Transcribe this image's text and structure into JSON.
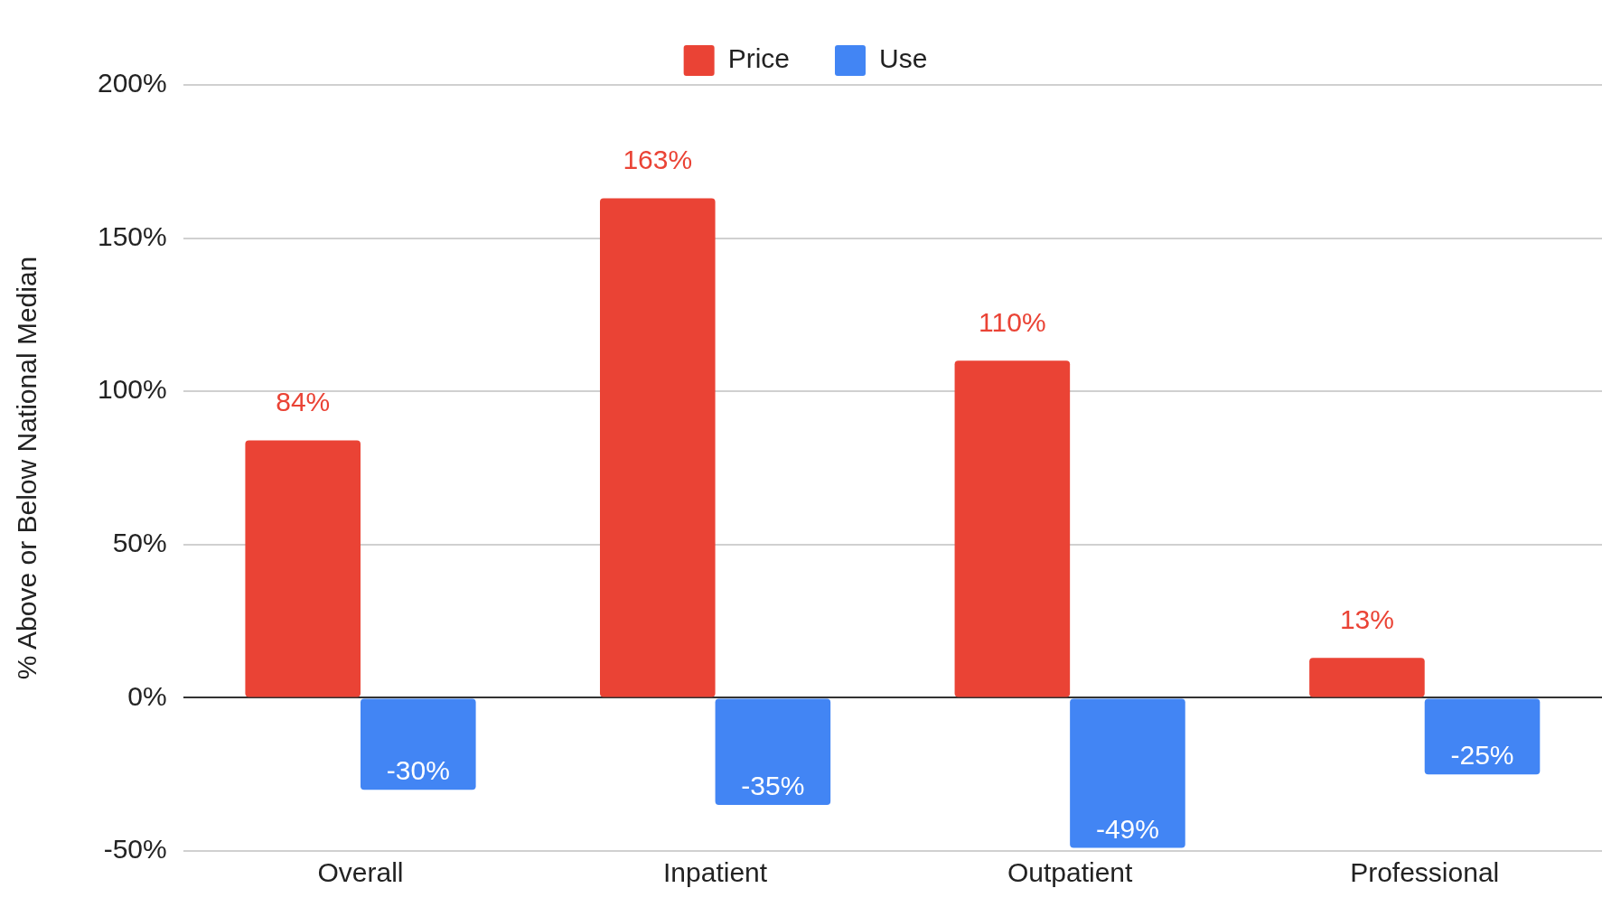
{
  "chart_data": {
    "type": "bar",
    "ylabel": "% Above or Below National Median",
    "categories": [
      "Overall",
      "Inpatient",
      "Outpatient",
      "Professional"
    ],
    "series": [
      {
        "name": "Price",
        "color": "#ea4335",
        "values": [
          84,
          163,
          110,
          13
        ],
        "value_labels": [
          "84%",
          "163%",
          "110%",
          "13%"
        ]
      },
      {
        "name": "Use",
        "color": "#4285f4",
        "values": [
          -30,
          -35,
          -49,
          -25
        ],
        "value_labels": [
          "-30%",
          "-35%",
          "-49%",
          "-25%"
        ]
      }
    ],
    "ylim": [
      -50,
      200
    ],
    "yticks": [
      {
        "value": -50,
        "label": "-50%"
      },
      {
        "value": 0,
        "label": "0%"
      },
      {
        "value": 50,
        "label": "50%"
      },
      {
        "value": 100,
        "label": "100%"
      },
      {
        "value": 150,
        "label": "150%"
      },
      {
        "value": 200,
        "label": "200%"
      }
    ],
    "grid": "y",
    "legend": "top"
  }
}
